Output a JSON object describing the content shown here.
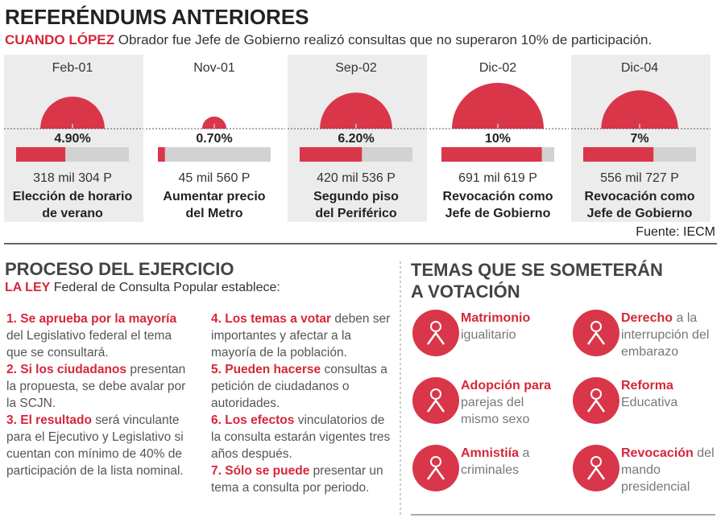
{
  "header": {
    "title": "REFERÉNDUMS ANTERIORES",
    "lead": "CUANDO LÓPEZ",
    "subtitle": "Obrador fue Jefe de Gobierno realizó consultas que no superaron 10% de participación."
  },
  "referendums": {
    "dates": [
      "Feb-01",
      "Nov-01",
      "Sep-02",
      "Dic-02",
      "Dic-04"
    ],
    "values": [
      4.9,
      0.7,
      6.2,
      10,
      7
    ],
    "value_labels": [
      "4.90%",
      "0.70%",
      "6.20%",
      "10%",
      "7%"
    ],
    "votes": [
      "318 mil 304 P",
      "45 mil 560 P",
      "420 mil 536 P",
      "691 mil 619 P",
      "556 mil 727 P"
    ],
    "topics": [
      [
        "Elección de horario",
        "de verano"
      ],
      [
        "Aumentar precio",
        "del Metro"
      ],
      [
        "Segundo piso",
        "del Periférico"
      ],
      [
        "Revocación como",
        "Jefe de Gobierno"
      ],
      [
        "Revocación como",
        "Jefe de Gobierno"
      ]
    ],
    "source": "Fuente: IECM"
  },
  "process": {
    "title": "PROCESO DEL EJERCICIO",
    "lead": "LA LEY",
    "intro": "Federal de Consulta Popular establece:",
    "items": [
      {
        "bold": "1. Se aprueba por la mayoría",
        "text": "del Legislativo federal el tema que se consultará."
      },
      {
        "bold": "2. Si los ciudadanos",
        "text": "presentan la propuesta, se debe avalar por la SCJN."
      },
      {
        "bold": "3. El resultado",
        "text": "será vinculante para el Ejecutivo y Legislativo si cuentan con mínimo de 40% de participación de la lista nominal."
      },
      {
        "bold": "4. Los temas a votar",
        "text": "deben ser importantes y afectar a la mayoría de la población."
      },
      {
        "bold": "5. Pueden hacerse",
        "text": "consultas a petición de ciudadanos o autoridades."
      },
      {
        "bold": "6. Los efectos",
        "text": "vinculatorios de la consulta estarán vigentes tres años después."
      },
      {
        "bold": "7. Sólo se puede",
        "text": "presentar un tema a consulta por periodo."
      }
    ]
  },
  "topics": {
    "title": [
      "TEMAS QUE SE SOMETERÁN",
      "A VOTACIÓN"
    ],
    "items": [
      {
        "bold": "Matrimonio",
        "text": "igualitario"
      },
      {
        "bold": "Derecho",
        "text": "a la interrupción del embarazo"
      },
      {
        "bold": "Adopción para",
        "text": "parejas del mismo sexo"
      },
      {
        "bold": "Reforma",
        "text": "Educativa"
      },
      {
        "bold": "Amnistiía",
        "text": "a criminales"
      },
      {
        "bold": "Revocación",
        "text": "del mando presidencial"
      }
    ]
  }
}
